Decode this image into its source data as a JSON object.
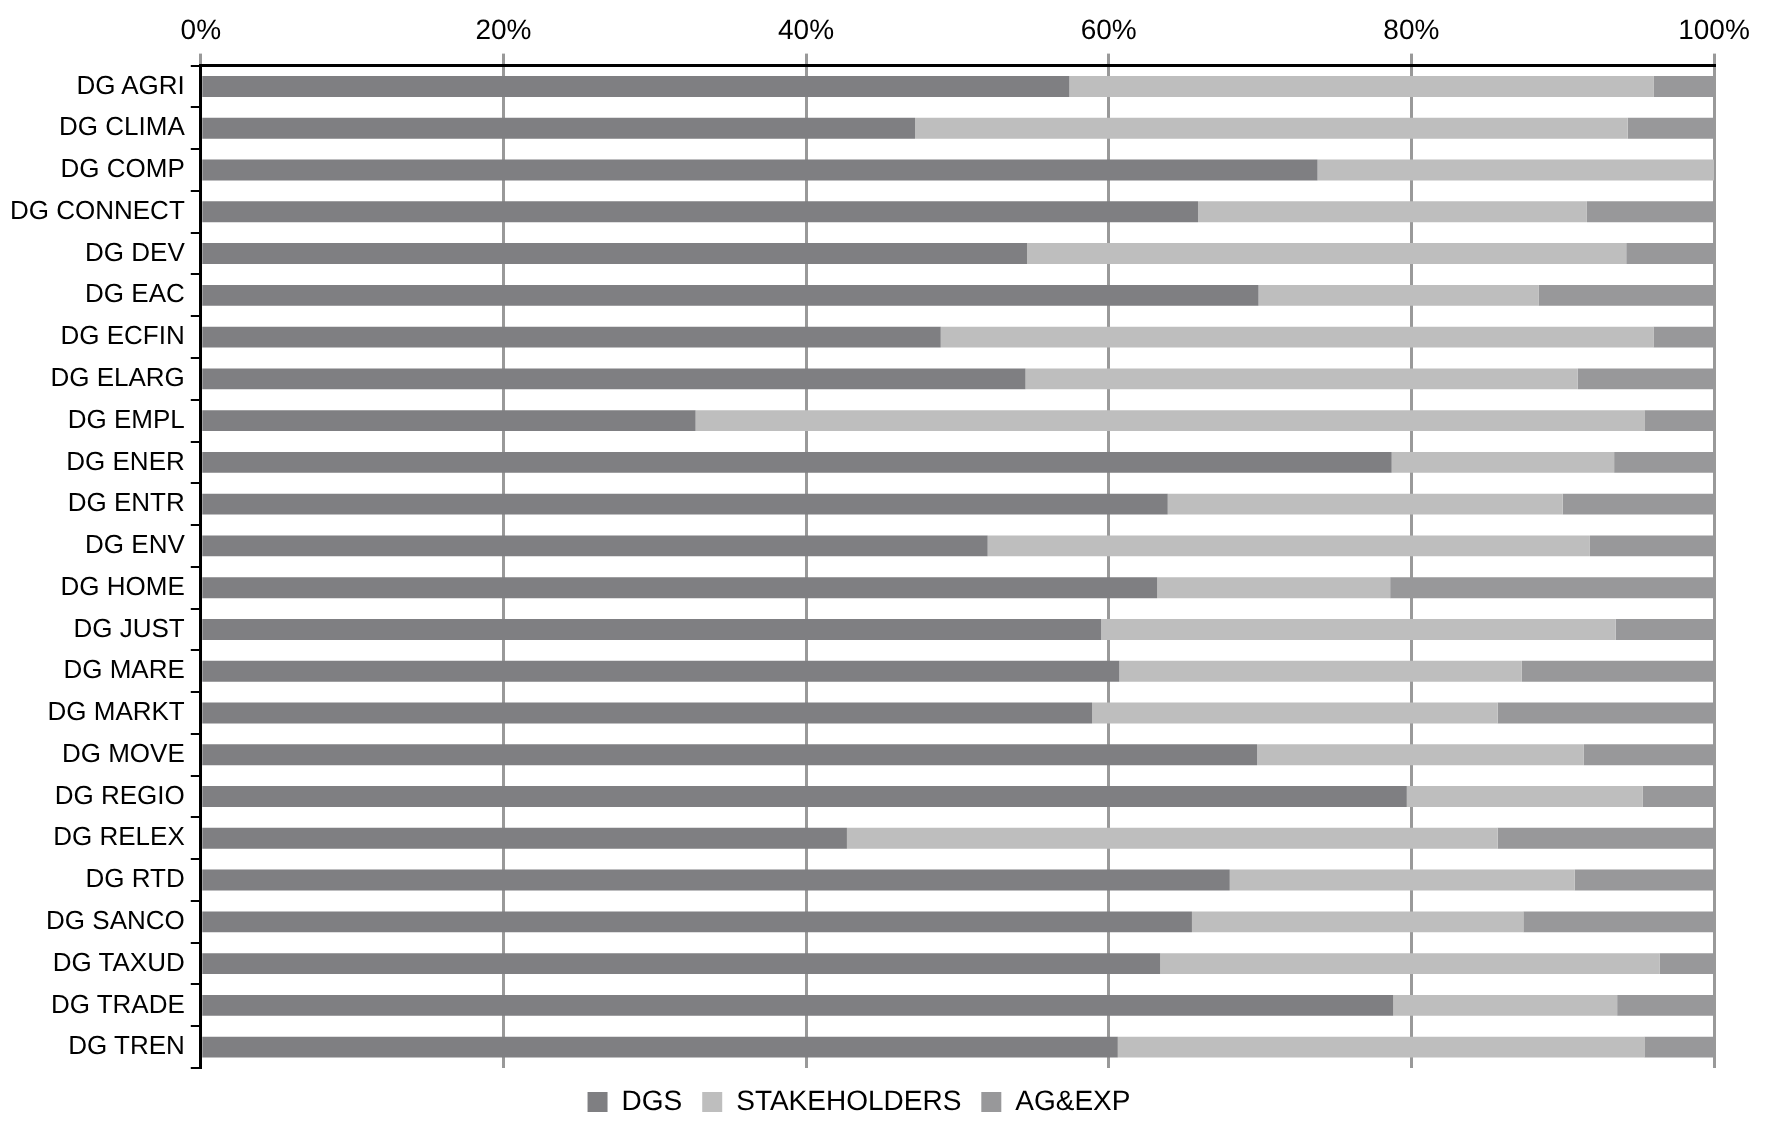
{
  "chart_data": {
    "type": "bar",
    "orientation": "horizontal",
    "stacked": true,
    "grid": "x",
    "legend": "bottom",
    "categories": [
      "DG AGRI",
      "DG CLIMA",
      "DG COMP",
      "DG CONNECT",
      "DG DEV",
      "DG EAC",
      "DG ECFIN",
      "DG ELARG",
      "DG EMPL",
      "DG ENER",
      "DG ENTR",
      "DG ENV",
      "DG HOME",
      "DG JUST",
      "DG MARE",
      "DG MARKT",
      "DG MOVE",
      "DG REGIO",
      "DG RELEX",
      "DG RTD",
      "DG SANCO",
      "DG TAXUD",
      "DG TRADE",
      "DG TREN"
    ],
    "series": [
      {
        "name": "DGS",
        "color": "#7f7f82",
        "values": [
          57.4,
          47.2,
          73.8,
          65.9,
          54.6,
          69.9,
          48.9,
          54.5,
          32.7,
          78.7,
          63.9,
          52.0,
          63.2,
          59.5,
          60.7,
          58.9,
          69.8,
          79.7,
          42.7,
          68.0,
          65.5,
          63.4,
          78.8,
          60.6
        ]
      },
      {
        "name": "STAKEHOLDERS",
        "color": "#bebebe",
        "values": [
          38.6,
          47.1,
          26.2,
          25.7,
          39.6,
          18.5,
          47.1,
          36.5,
          62.7,
          14.7,
          26.1,
          39.8,
          15.4,
          34.0,
          26.6,
          26.8,
          21.6,
          15.6,
          43.0,
          22.8,
          21.9,
          33.0,
          14.8,
          34.8
        ]
      },
      {
        "name": "AG&EXP",
        "color": "#98989a",
        "values": [
          4.0,
          5.7,
          0,
          8.4,
          5.8,
          11.6,
          4.0,
          9.0,
          4.6,
          6.6,
          10.0,
          8.2,
          21.4,
          6.5,
          12.7,
          14.3,
          8.6,
          4.7,
          14.3,
          9.2,
          12.6,
          3.6,
          6.4,
          4.6
        ]
      }
    ],
    "xlim": [
      0,
      100
    ],
    "xticks": [
      {
        "value": 0,
        "label": "0%"
      },
      {
        "value": 20,
        "label": "20%"
      },
      {
        "value": 40,
        "label": "40%"
      },
      {
        "value": 60,
        "label": "60%"
      },
      {
        "value": 80,
        "label": "80%"
      },
      {
        "value": 100,
        "label": "100%"
      }
    ]
  }
}
